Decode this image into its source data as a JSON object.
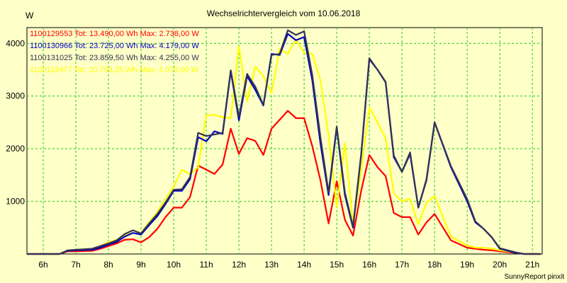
{
  "chart_data": {
    "type": "line",
    "title": "Wechselrichtervergleich vom 10.06.2018",
    "ylabel": "W",
    "xlabel": "",
    "ylim": [
      0,
      4300
    ],
    "xlim": [
      5.5,
      21.3
    ],
    "y_ticks": [
      1000,
      2000,
      3000,
      4000
    ],
    "y_tick_labels": [
      "1000",
      "2000",
      "3000",
      "4000"
    ],
    "x_ticks": [
      6,
      7,
      8,
      9,
      10,
      11,
      12,
      13,
      14,
      15,
      16,
      17,
      18,
      19,
      20,
      21
    ],
    "x_tick_labels": [
      "6h",
      "7h",
      "8h",
      "9h",
      "10h",
      "11h",
      "12h",
      "13h",
      "14h",
      "15h",
      "16h",
      "17h",
      "18h",
      "19h",
      "20h",
      "21h"
    ],
    "grid": true,
    "footer": "SunnyReport pinxit",
    "legend": [
      {
        "text": "1100129553 Tot: 13.490,00 Wh Max: 2.738,00 W",
        "color": "#ff0000"
      },
      {
        "text": "1100130966 Tot: 23.725,00 Wh Max: 4.179,00 W",
        "color": "#0000c0"
      },
      {
        "text": "1100131025 Tot: 23.859,50 Wh Max: 4.255,00 W",
        "color": "#333355"
      },
      {
        "text": "1100119477 Tot: 20.793,25 Wh Max: 4.079,00 W",
        "color": "#ffff00"
      }
    ],
    "x": [
      5.5,
      6.5,
      6.75,
      7.0,
      7.5,
      7.75,
      8.0,
      8.25,
      8.5,
      8.75,
      9.0,
      9.25,
      9.5,
      9.75,
      10.0,
      10.25,
      10.5,
      10.75,
      11.0,
      11.25,
      11.5,
      11.75,
      12.0,
      12.25,
      12.5,
      12.75,
      13.0,
      13.25,
      13.5,
      13.75,
      14.0,
      14.25,
      14.5,
      14.75,
      15.0,
      15.25,
      15.5,
      15.75,
      16.0,
      16.25,
      16.5,
      16.75,
      17.0,
      17.25,
      17.5,
      17.75,
      18.0,
      18.5,
      19.0,
      19.25,
      19.5,
      19.75,
      20.0,
      20.5,
      20.75,
      21.0,
      21.25
    ],
    "series": [
      {
        "name": "1100129553",
        "color": "#ff0000",
        "values": [
          0,
          0,
          50,
          50,
          60,
          100,
          150,
          200,
          270,
          280,
          220,
          320,
          480,
          700,
          880,
          880,
          1080,
          1680,
          1600,
          1520,
          1700,
          2380,
          1900,
          2200,
          2150,
          1880,
          2380,
          2550,
          2720,
          2580,
          2580,
          2050,
          1400,
          580,
          1380,
          650,
          350,
          1200,
          1880,
          1650,
          1480,
          780,
          700,
          700,
          370,
          600,
          760,
          260,
          120,
          100,
          80,
          70,
          50,
          20,
          0,
          0,
          0
        ]
      },
      {
        "name": "1100119477",
        "color": "#ffff00",
        "values": [
          0,
          0,
          60,
          80,
          100,
          150,
          220,
          270,
          360,
          450,
          400,
          600,
          800,
          1050,
          1280,
          1600,
          1520,
          1650,
          2640,
          2640,
          2600,
          2580,
          3940,
          2900,
          3560,
          3380,
          3060,
          3900,
          3800,
          4080,
          3820,
          3800,
          3300,
          2250,
          900,
          2100,
          550,
          1580,
          2780,
          2500,
          2200,
          1150,
          1000,
          1050,
          560,
          980,
          1100,
          330,
          160,
          120,
          120,
          100,
          70,
          30,
          0,
          0,
          0
        ]
      },
      {
        "name": "1100130966",
        "color": "#0000c0",
        "values": [
          0,
          0,
          60,
          70,
          80,
          120,
          180,
          230,
          330,
          400,
          370,
          550,
          720,
          950,
          1200,
          1200,
          1420,
          2220,
          2140,
          2330,
          2280,
          3470,
          2540,
          3380,
          3120,
          2820,
          3800,
          3780,
          4180,
          4060,
          4120,
          3300,
          2100,
          1120,
          2400,
          1120,
          500,
          1880,
          3700,
          3500,
          3260,
          1840,
          1560,
          1900,
          880,
          1400,
          2500,
          1650,
          1000,
          600,
          480,
          320,
          100,
          20,
          0,
          0,
          0
        ]
      },
      {
        "name": "1100131025",
        "color": "#333355",
        "values": [
          0,
          0,
          70,
          80,
          100,
          150,
          200,
          260,
          380,
          450,
          390,
          580,
          760,
          980,
          1220,
          1230,
          1460,
          2300,
          2240,
          2270,
          2300,
          3490,
          2600,
          3420,
          3180,
          2830,
          3780,
          3800,
          4250,
          4160,
          4230,
          3400,
          2220,
          1170,
          2420,
          1170,
          520,
          1900,
          3720,
          3500,
          3270,
          1870,
          1560,
          1930,
          880,
          1420,
          2500,
          1670,
          1040,
          620,
          480,
          320,
          110,
          30,
          0,
          0,
          0
        ]
      }
    ]
  }
}
